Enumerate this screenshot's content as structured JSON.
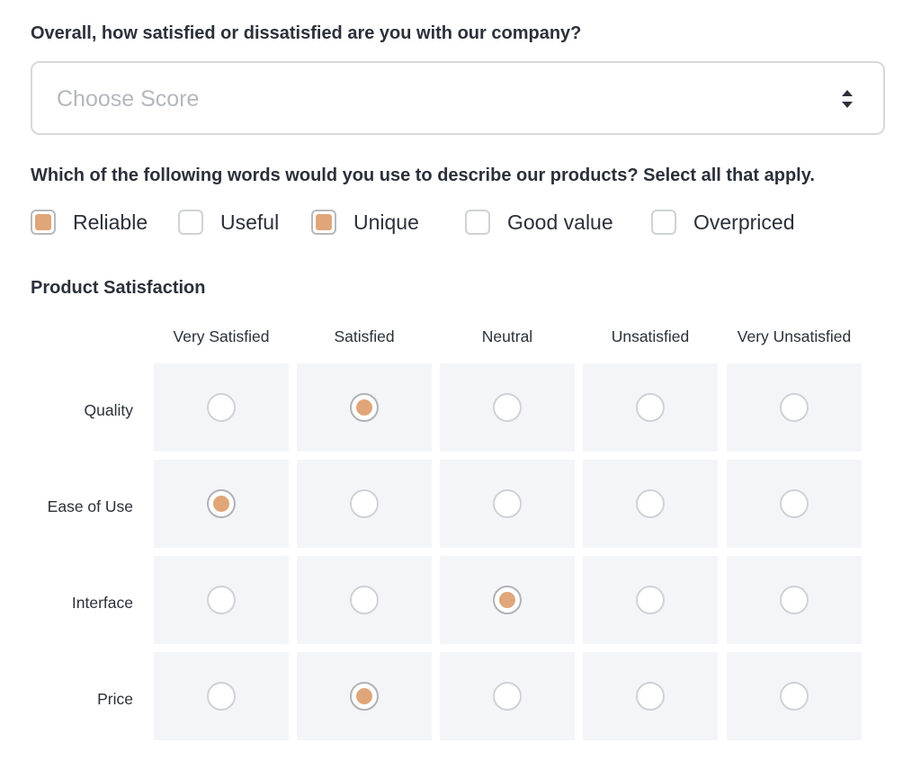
{
  "questions": {
    "overall": {
      "label": "Overall, how satisfied or dissatisfied are you with our company?",
      "placeholder": "Choose Score"
    },
    "words": {
      "label": "Which of the following words would you use to describe our products? Select all that apply.",
      "options": [
        {
          "label": "Reliable",
          "checked": true
        },
        {
          "label": "Useful",
          "checked": false
        },
        {
          "label": "Unique",
          "checked": true
        },
        {
          "label": "Good value",
          "checked": false
        },
        {
          "label": "Overpriced",
          "checked": false
        }
      ]
    },
    "matrix": {
      "label": "Product Satisfaction",
      "columns": [
        "Very Satisfied",
        "Satisfied",
        "Neutral",
        "Unsatisfied",
        "Very Unsatisfied"
      ],
      "rows": [
        {
          "label": "Quality",
          "selected": 1
        },
        {
          "label": "Ease of Use",
          "selected": 0
        },
        {
          "label": "Interface",
          "selected": 2
        },
        {
          "label": "Price",
          "selected": 1
        }
      ]
    }
  },
  "colors": {
    "accent": "#e0a679",
    "cell_bg": "#f4f5f9",
    "border": "#cfd2d6"
  }
}
